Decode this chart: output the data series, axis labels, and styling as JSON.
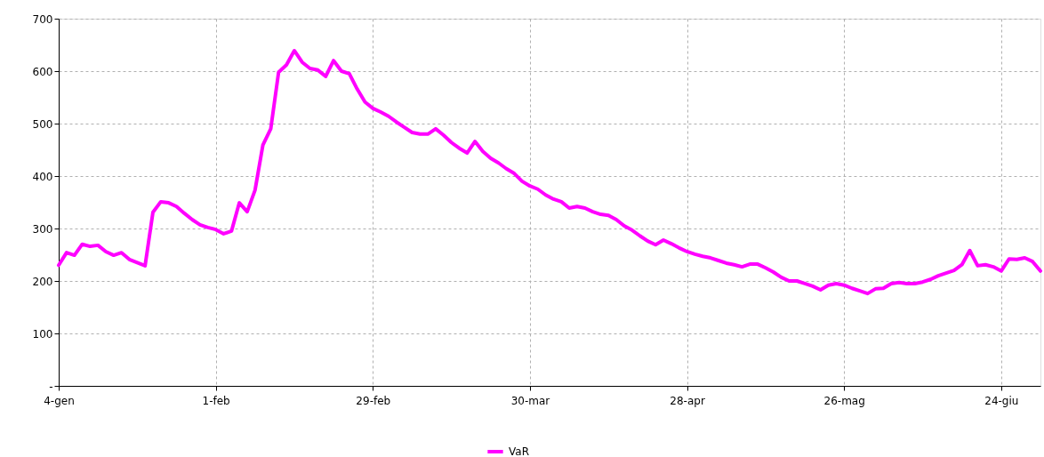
{
  "chart_data": {
    "type": "line",
    "categories": [
      "4-gen",
      null,
      null,
      null,
      null,
      null,
      null,
      null,
      null,
      null,
      null,
      null,
      null,
      null,
      null,
      null,
      null,
      null,
      null,
      null,
      "1-feb",
      null,
      null,
      null,
      null,
      null,
      null,
      null,
      null,
      null,
      null,
      null,
      null,
      null,
      null,
      null,
      null,
      null,
      null,
      null,
      "29-feb",
      null,
      null,
      null,
      null,
      null,
      null,
      null,
      null,
      null,
      null,
      null,
      null,
      null,
      null,
      null,
      null,
      null,
      null,
      null,
      "30-mar",
      null,
      null,
      null,
      null,
      null,
      null,
      null,
      null,
      null,
      null,
      null,
      null,
      null,
      null,
      null,
      null,
      null,
      null,
      null,
      "28-apr",
      null,
      null,
      null,
      null,
      null,
      null,
      null,
      null,
      null,
      null,
      null,
      null,
      null,
      null,
      null,
      null,
      null,
      null,
      null,
      "26-mag",
      null,
      null,
      null,
      null,
      null,
      null,
      null,
      null,
      null,
      null,
      null,
      null,
      null,
      null,
      null,
      null,
      null,
      null,
      null,
      "24-giu",
      null,
      null,
      null,
      null,
      null
    ],
    "series": [
      {
        "name": "VaR",
        "color": "#ff00ff",
        "values": [
          230,
          254,
          249,
          270,
          266,
          268,
          256,
          249,
          254,
          241,
          235,
          229,
          331,
          351,
          349,
          342,
          329,
          317,
          307,
          302,
          298,
          290,
          295,
          349,
          332,
          373,
          459,
          490,
          598,
          612,
          639,
          617,
          605,
          602,
          590,
          620,
          600,
          595,
          566,
          541,
          529,
          522,
          514,
          503,
          493,
          483,
          480,
          480,
          490,
          478,
          464,
          453,
          444,
          466,
          447,
          434,
          425,
          414,
          405,
          390,
          381,
          375,
          364,
          356,
          351,
          339,
          342,
          339,
          332,
          327,
          325,
          317,
          305,
          297,
          286,
          276,
          269,
          278,
          271,
          263,
          256,
          251,
          247,
          244,
          239,
          234,
          231,
          227,
          232,
          232,
          225,
          217,
          207,
          200,
          200,
          195,
          190,
          183,
          192,
          195,
          192,
          186,
          181,
          176,
          185,
          186,
          195,
          197,
          195,
          195,
          198,
          203,
          210,
          215,
          220,
          231,
          258,
          229,
          231,
          227,
          219,
          242,
          241,
          244,
          237,
          219
        ]
      }
    ],
    "ylim": [
      0,
      700
    ],
    "yticks": [
      {
        "value": 0,
        "label": "-"
      },
      100,
      200,
      300,
      400,
      500,
      600,
      700
    ],
    "grid": true,
    "legend": "bottom",
    "line_style": "solid",
    "marker": "none"
  }
}
